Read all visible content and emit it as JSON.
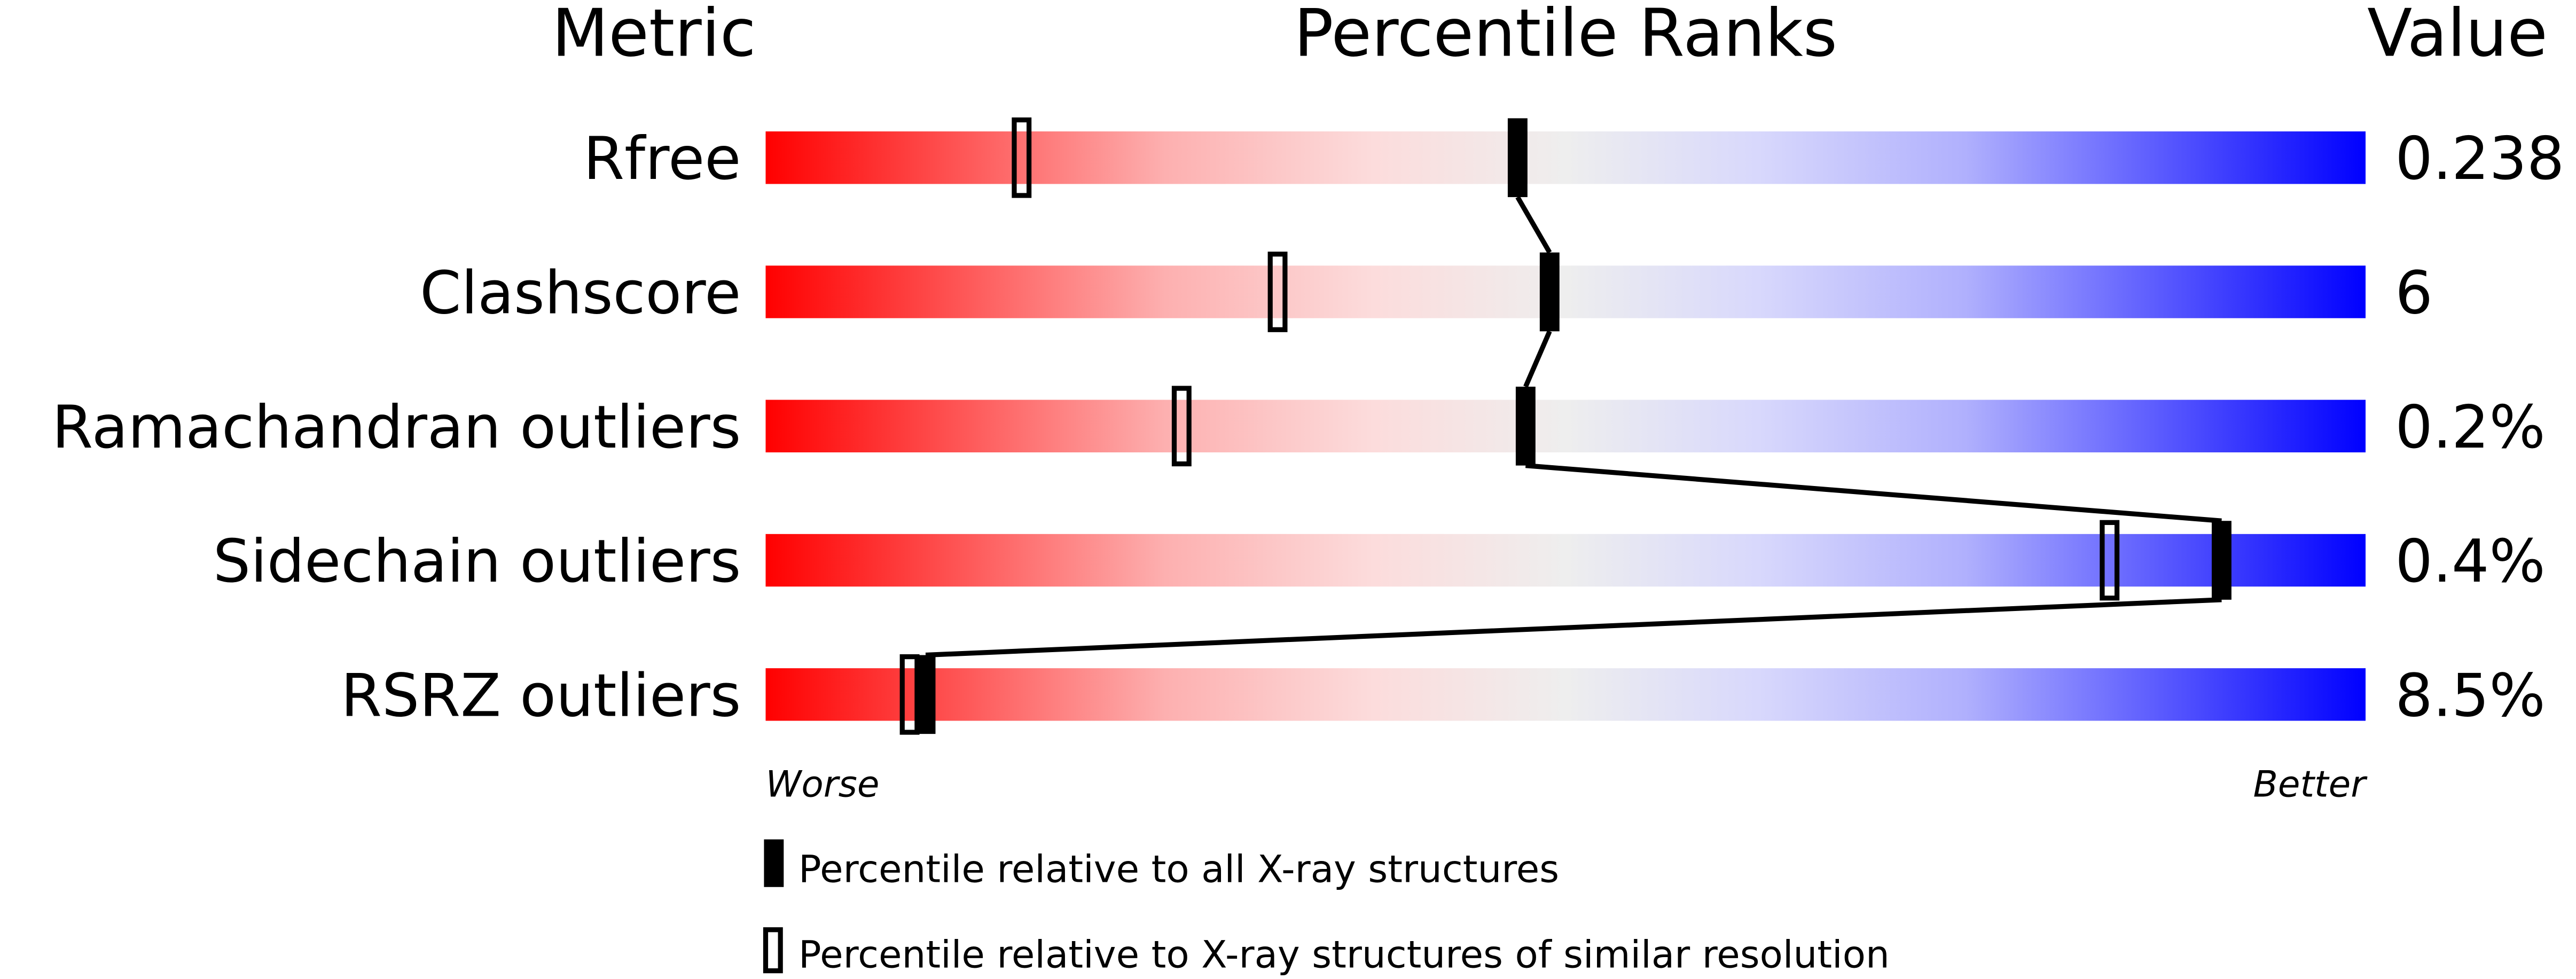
{
  "chart_data": {
    "type": "percentile-bars",
    "headers": {
      "metric": "Metric",
      "ranks": "Percentile Ranks",
      "value": "Value"
    },
    "axis": {
      "worse": "Worse",
      "better": "Better",
      "range": [
        0,
        100
      ]
    },
    "gradient_colors": [
      "#ff0000",
      "#fcdcdc",
      "#eeeeee",
      "#d8d8fc",
      "#0000ff"
    ],
    "rows": [
      {
        "metric": "Rfree",
        "value": "0.238",
        "percentile_all": 47,
        "percentile_similar": 16
      },
      {
        "metric": "Clashscore",
        "value": "6",
        "percentile_all": 49,
        "percentile_similar": 32
      },
      {
        "metric": "Ramachandran outliers",
        "value": "0.2%",
        "percentile_all": 47.5,
        "percentile_similar": 26
      },
      {
        "metric": "Sidechain outliers",
        "value": "0.4%",
        "percentile_all": 91,
        "percentile_similar": 84
      },
      {
        "metric": "RSRZ outliers",
        "value": "8.5%",
        "percentile_all": 10,
        "percentile_similar": 9
      }
    ],
    "legend": [
      {
        "marker": "filled",
        "label": "Percentile relative to all X-ray structures"
      },
      {
        "marker": "open",
        "label": "Percentile relative to X-ray structures of similar resolution"
      }
    ]
  }
}
